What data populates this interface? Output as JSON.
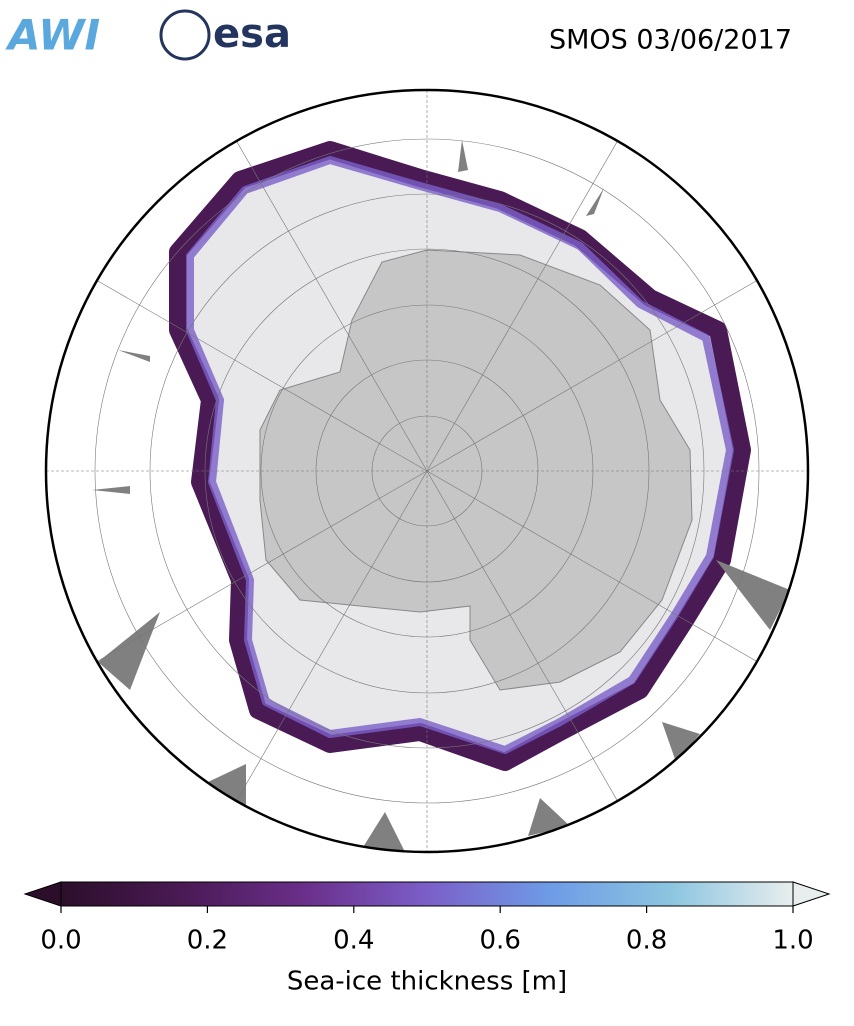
{
  "logos": [
    "AWI",
    "esa"
  ],
  "title": "SMOS 03/06/2017",
  "colorbar": {
    "label": "Sea-ice thickness [m]",
    "lim": [
      0,
      1
    ],
    "ticks": [
      {
        "value": 0,
        "label": "0.0"
      },
      {
        "value": 0.2,
        "label": "0.2"
      },
      {
        "value": 0.4,
        "label": "0.4"
      },
      {
        "value": 0.6,
        "label": "0.6"
      },
      {
        "value": 0.8,
        "label": "0.8"
      },
      {
        "value": 1,
        "label": "1.0"
      }
    ],
    "colors": [
      "#2b0f2a",
      "#4a1a55",
      "#6a2f8a",
      "#7b5fc8",
      "#6e9be6",
      "#8cc5e0",
      "#e8eeee"
    ]
  }
}
